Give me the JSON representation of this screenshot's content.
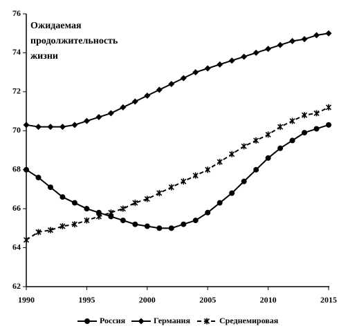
{
  "chart_data": {
    "type": "line",
    "title": [
      "Ожидаемая",
      "продолжительность",
      "жизни"
    ],
    "x": [
      1990,
      1991,
      1992,
      1993,
      1994,
      1995,
      1996,
      1997,
      1998,
      1999,
      2000,
      2001,
      2002,
      2003,
      2004,
      2005,
      2006,
      2007,
      2008,
      2009,
      2010,
      2011,
      2012,
      2013,
      2014,
      2015
    ],
    "series": [
      {
        "name": "Россия",
        "color": "#000000",
        "marker": "circle",
        "dashed": false,
        "values": [
          68.0,
          67.6,
          67.1,
          66.6,
          66.3,
          66.0,
          65.8,
          65.6,
          65.4,
          65.2,
          65.1,
          65.0,
          65.0,
          65.2,
          65.4,
          65.8,
          66.3,
          66.8,
          67.4,
          68.0,
          68.6,
          69.1,
          69.5,
          69.9,
          70.1,
          70.3
        ]
      },
      {
        "name": "Германия",
        "color": "#000000",
        "marker": "diamond",
        "dashed": false,
        "values": [
          70.3,
          70.2,
          70.2,
          70.2,
          70.3,
          70.5,
          70.7,
          70.9,
          71.2,
          71.5,
          71.8,
          72.1,
          72.4,
          72.7,
          73.0,
          73.2,
          73.4,
          73.6,
          73.8,
          74.0,
          74.2,
          74.4,
          74.6,
          74.7,
          74.9,
          75.0
        ]
      },
      {
        "name": "Среднемировая",
        "color": "#000000",
        "marker": "star",
        "dashed": true,
        "values": [
          64.4,
          64.8,
          64.9,
          65.1,
          65.2,
          65.4,
          65.6,
          65.8,
          66.0,
          66.3,
          66.5,
          66.8,
          67.1,
          67.4,
          67.7,
          68.0,
          68.4,
          68.8,
          69.2,
          69.5,
          69.8,
          70.2,
          70.5,
          70.8,
          70.9,
          71.2
        ]
      }
    ],
    "xlim": [
      1990,
      2015
    ],
    "xticks": [
      1990,
      1995,
      2000,
      2005,
      2010,
      2015
    ],
    "ylim": [
      62,
      76
    ],
    "yticks": [
      62,
      64,
      66,
      68,
      70,
      72,
      74,
      76
    ],
    "grid": false,
    "legend": "bottom"
  }
}
